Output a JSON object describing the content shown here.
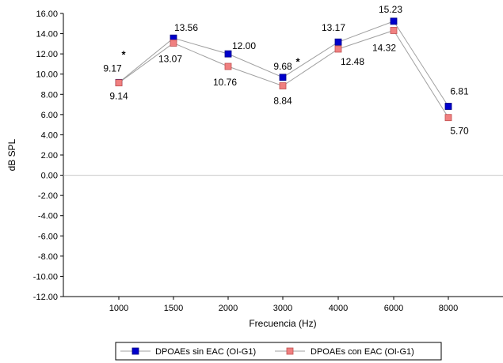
{
  "chart_data": {
    "type": "line",
    "xlabel": "Frecuencia (Hz)",
    "ylabel": "dB SPL",
    "categories": [
      "1000",
      "1500",
      "2000",
      "3000",
      "4000",
      "6000",
      "8000"
    ],
    "ylim": [
      -12,
      16
    ],
    "ytick_step": 2,
    "ytick_labels": [
      "-12.00",
      "-10.00",
      "-8.00",
      "-6.00",
      "-4.00",
      "-2.00",
      "0.00",
      "2.00",
      "4.00",
      "6.00",
      "8.00",
      "10.00",
      "12.00",
      "14.00",
      "16.00"
    ],
    "grid": false,
    "legend_position": "bottom",
    "series": [
      {
        "name": "DPOAEs sin EAC (OI-G1)",
        "color": "#0000cc",
        "values": [
          9.17,
          13.56,
          12.0,
          9.68,
          13.17,
          15.23,
          6.81
        ],
        "labels": [
          "9.17",
          "13.56",
          "12.00",
          "9.68",
          "13.17",
          "15.23",
          "6.81"
        ]
      },
      {
        "name": "DPOAEs con EAC (OI-G1)",
        "color": "#f08080",
        "values": [
          9.14,
          13.07,
          10.76,
          8.84,
          12.48,
          14.32,
          5.7
        ],
        "labels": [
          "9.14",
          "13.07",
          "10.76",
          "8.84",
          "12.48",
          "14.32",
          "5.70"
        ]
      }
    ],
    "annotations": [
      {
        "text": "*",
        "category_index": 0,
        "y": 11.9
      },
      {
        "text": "*",
        "category_index": 3,
        "y": 11.2
      }
    ]
  }
}
